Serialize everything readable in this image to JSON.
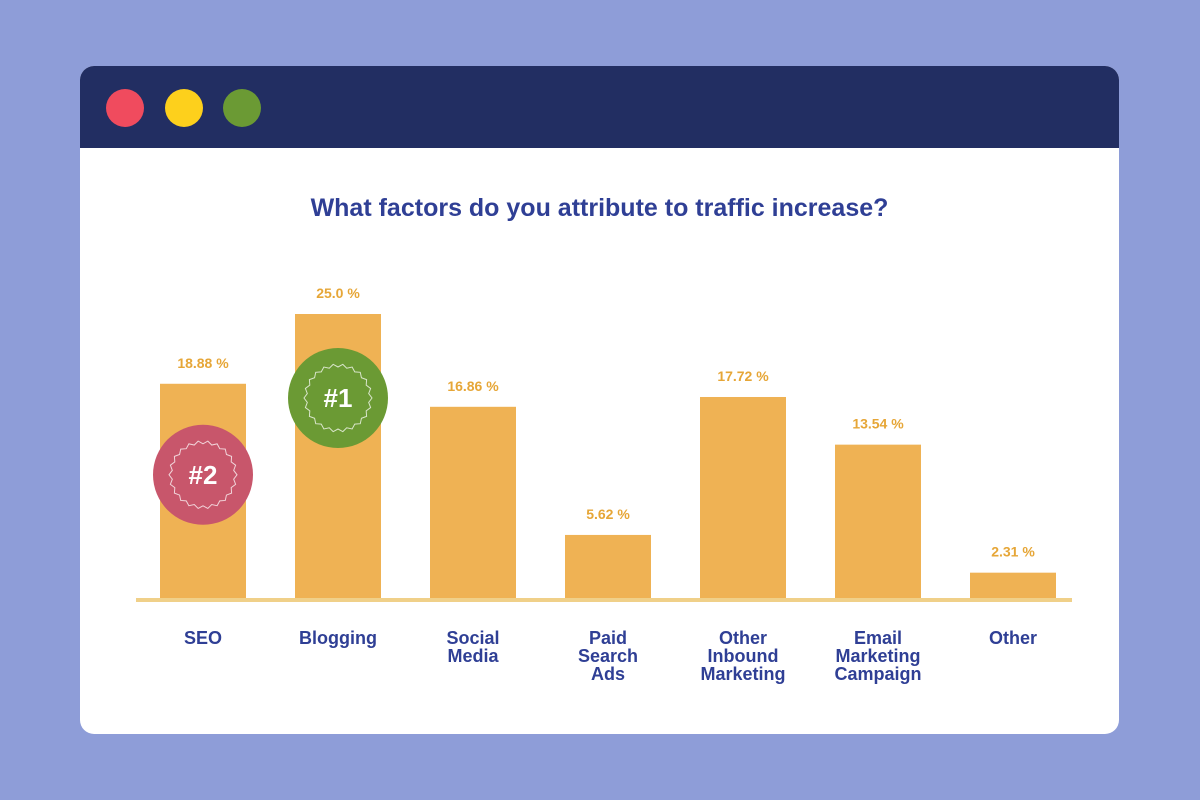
{
  "window": {
    "buttons": [
      "close",
      "minimize",
      "maximize"
    ]
  },
  "colors": {
    "background": "#8e9dd8",
    "titlebar": "#222e62",
    "bar": "#efb254",
    "value_label": "#e6a637",
    "text": "#2f3f95",
    "rank1_badge": "#6b9a34",
    "rank2_badge": "#c8566b"
  },
  "chart_data": {
    "type": "bar",
    "title": "What factors do you attribute to traffic increase?",
    "categories": [
      [
        "SEO"
      ],
      [
        "Blogging"
      ],
      [
        "Social",
        "Media"
      ],
      [
        "Paid",
        "Search",
        "Ads"
      ],
      [
        "Other",
        "Inbound",
        "Marketing"
      ],
      [
        "Email",
        "Marketing",
        "Campaign"
      ],
      [
        "Other"
      ]
    ],
    "values": [
      18.88,
      25.0,
      16.86,
      5.62,
      17.72,
      13.54,
      2.31
    ],
    "value_labels": [
      "18.88 %",
      "25.0 %",
      "16.86 %",
      "5.62 %",
      "17.72 %",
      "13.54 %",
      "2.31 %"
    ],
    "ylim": [
      0,
      25
    ],
    "xlabel": "",
    "ylabel": "",
    "grid": false,
    "badges": [
      {
        "label": "#1",
        "category_index": 1
      },
      {
        "label": "#2",
        "category_index": 0
      }
    ]
  }
}
